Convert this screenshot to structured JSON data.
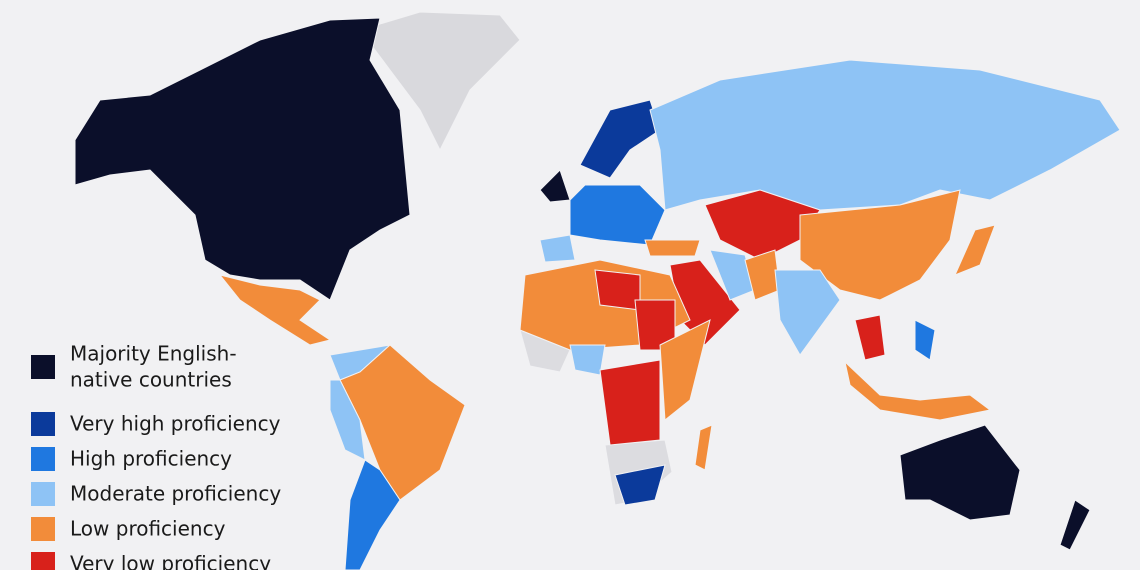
{
  "legend": [
    {
      "lines": [
        "Majority English-",
        "native countries"
      ],
      "color": "#0b0f2a"
    },
    {
      "lines": [
        "Very high proficiency"
      ],
      "color": "#0b3a9b"
    },
    {
      "lines": [
        "High proficiency"
      ],
      "color": "#1f78e0"
    },
    {
      "lines": [
        "Moderate proficiency"
      ],
      "color": "#8ec3f5"
    },
    {
      "lines": [
        "Low proficiency"
      ],
      "color": "#f28c3a"
    },
    {
      "lines": [
        "Very low proficiency"
      ],
      "color": "#d8211b"
    }
  ]
}
